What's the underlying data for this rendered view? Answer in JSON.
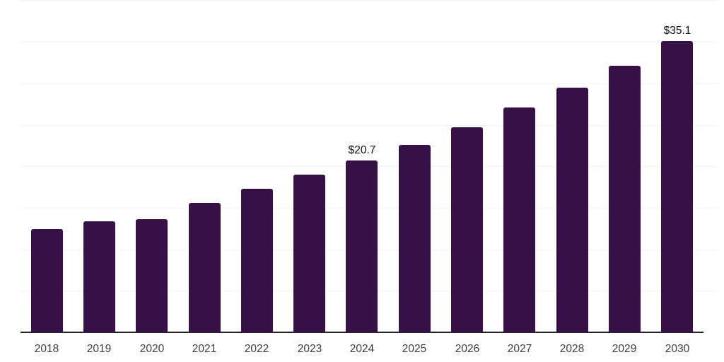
{
  "chart_data": {
    "type": "bar",
    "title": "",
    "xlabel": "",
    "ylabel": "",
    "categories": [
      "2018",
      "2019",
      "2020",
      "2021",
      "2022",
      "2023",
      "2024",
      "2025",
      "2026",
      "2027",
      "2028",
      "2029",
      "2030"
    ],
    "values": [
      12.4,
      13.4,
      13.6,
      15.6,
      17.3,
      19.0,
      20.7,
      22.6,
      24.7,
      27.1,
      29.5,
      32.1,
      35.1
    ],
    "data_labels": {
      "2024": "$20.7",
      "2030": "$35.1"
    },
    "value_prefix": "$",
    "ylim": [
      0,
      40
    ],
    "grid_step": 5,
    "grid": "horizontal",
    "legend": "none"
  },
  "colors": {
    "background": "#ffffff",
    "bar": "#351148",
    "axis_line": "#262626",
    "gridline": "#f2f2f2",
    "tick_label": "#3d3d3d",
    "value_label": "#111111"
  }
}
